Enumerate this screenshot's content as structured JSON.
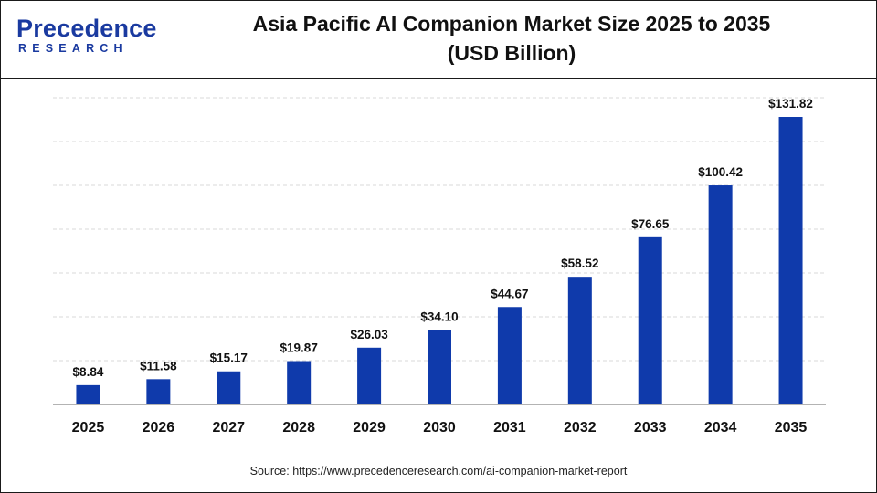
{
  "brand": {
    "logo_main": "Precedence",
    "logo_sub": "RESEARCH",
    "primary_color": "#1a3aa0",
    "bar_color": "#0f3aab"
  },
  "chart_data": {
    "type": "bar",
    "title_line1": "Asia Pacific AI Companion Market Size 2025 to 2035",
    "title_line2": "(USD Billion)",
    "categories": [
      "2025",
      "2026",
      "2027",
      "2028",
      "2029",
      "2030",
      "2031",
      "2032",
      "2033",
      "2034",
      "2035"
    ],
    "values": [
      8.84,
      11.58,
      15.17,
      19.87,
      26.03,
      34.1,
      44.67,
      58.52,
      76.65,
      100.42,
      131.82
    ],
    "value_labels": [
      "$8.84",
      "$11.58",
      "$15.17",
      "$19.87",
      "$26.03",
      "$34.10",
      "$44.67",
      "$58.52",
      "$76.65",
      "$100.42",
      "$131.82"
    ],
    "xlabel": "",
    "ylabel": "",
    "ylim": [
      0,
      140
    ],
    "grid": true,
    "legend": "none"
  },
  "source": "Source: https://www.precedenceresearch.com/ai-companion-market-report"
}
